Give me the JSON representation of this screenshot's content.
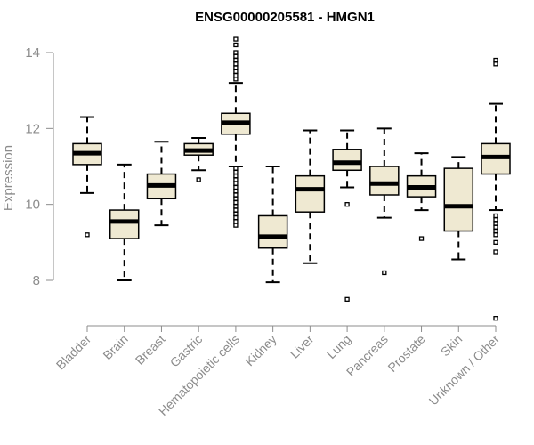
{
  "chart_data": {
    "type": "boxplot",
    "title": "ENSG00000205581 - HMGN1",
    "ylabel": "Expression",
    "xlabel": "",
    "ylim": [
      6.9,
      14.4
    ],
    "yticks": [
      8,
      10,
      12,
      14
    ],
    "box_fill": "#efe9d2",
    "line_color": "#000000",
    "axis_color": "#8c8c8c",
    "categories": [
      "Bladder",
      "Brain",
      "Breast",
      "Gastric",
      "Hematopoietic cells",
      "Kidney",
      "Liver",
      "Lung",
      "Pancreas",
      "Prostate",
      "Skin",
      "Unknown / Other"
    ],
    "boxes": [
      {
        "q1": 11.05,
        "median": 11.35,
        "q3": 11.6,
        "whisker_low": 10.3,
        "whisker_high": 12.3,
        "outliers": [
          9.2
        ]
      },
      {
        "q1": 9.1,
        "median": 9.55,
        "q3": 9.85,
        "whisker_low": 8.0,
        "whisker_high": 11.05,
        "outliers": []
      },
      {
        "q1": 10.15,
        "median": 10.5,
        "q3": 10.8,
        "whisker_low": 9.45,
        "whisker_high": 11.65,
        "outliers": []
      },
      {
        "q1": 11.3,
        "median": 11.42,
        "q3": 11.6,
        "whisker_low": 10.9,
        "whisker_high": 11.75,
        "outliers": [
          10.65
        ]
      },
      {
        "q1": 11.85,
        "median": 12.15,
        "q3": 12.4,
        "whisker_low": 11.0,
        "whisker_high": 13.2,
        "outliers": [
          9.45,
          9.55,
          9.65,
          9.75,
          9.85,
          9.95,
          10.05,
          10.15,
          10.25,
          10.35,
          10.45,
          10.55,
          10.65,
          10.75,
          10.85,
          10.95,
          13.3,
          13.4,
          13.5,
          13.6,
          13.7,
          13.8,
          13.9,
          14.0,
          14.2,
          14.35
        ]
      },
      {
        "q1": 8.85,
        "median": 9.15,
        "q3": 9.7,
        "whisker_low": 7.95,
        "whisker_high": 11.0,
        "outliers": []
      },
      {
        "q1": 9.8,
        "median": 10.4,
        "q3": 10.75,
        "whisker_low": 8.45,
        "whisker_high": 11.95,
        "outliers": []
      },
      {
        "q1": 10.9,
        "median": 11.1,
        "q3": 11.45,
        "whisker_low": 10.45,
        "whisker_high": 11.95,
        "outliers": [
          10.0,
          7.5
        ]
      },
      {
        "q1": 10.25,
        "median": 10.55,
        "q3": 11.0,
        "whisker_low": 9.65,
        "whisker_high": 12.0,
        "outliers": [
          8.2
        ]
      },
      {
        "q1": 10.2,
        "median": 10.45,
        "q3": 10.75,
        "whisker_low": 9.85,
        "whisker_high": 11.35,
        "outliers": [
          9.1
        ]
      },
      {
        "q1": 9.3,
        "median": 9.95,
        "q3": 10.95,
        "whisker_low": 8.55,
        "whisker_high": 11.25,
        "outliers": []
      },
      {
        "q1": 10.8,
        "median": 11.25,
        "q3": 11.6,
        "whisker_low": 9.85,
        "whisker_high": 12.65,
        "outliers": [
          9.2,
          9.3,
          9.4,
          9.5,
          9.6,
          9.7,
          9.0,
          8.75,
          7.0,
          13.7,
          13.8
        ]
      }
    ]
  }
}
